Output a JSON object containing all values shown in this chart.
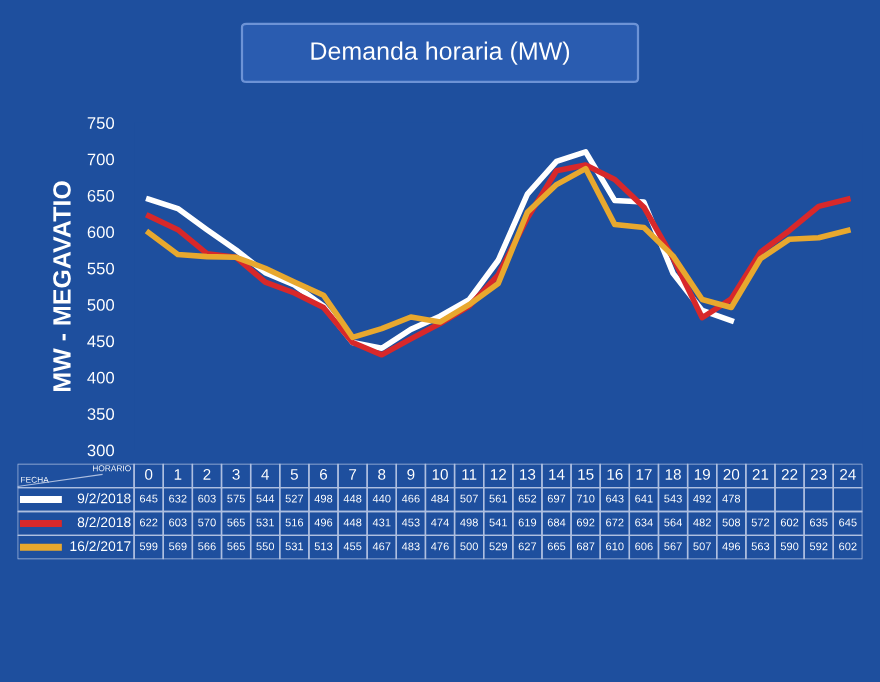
{
  "chart_data": {
    "type": "line",
    "title": "Demanda horaria (MW)",
    "ylabel": "MW - MEGAVATIO",
    "categories": [
      "0",
      "1",
      "2",
      "3",
      "4",
      "5",
      "6",
      "7",
      "8",
      "9",
      "10",
      "11",
      "12",
      "13",
      "14",
      "15",
      "16",
      "17",
      "18",
      "19",
      "20",
      "21",
      "22",
      "23",
      "24"
    ],
    "series": [
      {
        "name": "9/2/2018",
        "color": "#ffffff",
        "values": [
          645,
          632,
          603,
          575,
          544,
          527,
          498,
          448,
          440,
          466,
          484,
          507,
          561,
          652,
          697,
          710,
          643,
          641,
          543,
          492,
          478,
          null,
          null,
          null,
          null
        ]
      },
      {
        "name": "8/2/2018",
        "color": "#d8282a",
        "values": [
          622,
          603,
          570,
          565,
          531,
          516,
          496,
          448,
          431,
          453,
          474,
          498,
          541,
          619,
          684,
          692,
          672,
          634,
          564,
          482,
          508,
          572,
          602,
          635,
          645
        ]
      },
      {
        "name": "16/2/2017",
        "color": "#e8a82e",
        "values": [
          599,
          569,
          566,
          565,
          550,
          531,
          513,
          455,
          467,
          483,
          476,
          500,
          529,
          627,
          665,
          687,
          610,
          606,
          567,
          507,
          496,
          563,
          590,
          592,
          602
        ]
      }
    ],
    "ylim": [
      300,
      750
    ],
    "yticks": [
      300,
      350,
      400,
      450,
      500,
      550,
      600,
      650,
      700,
      750
    ],
    "tick_labels": "y",
    "grid": false,
    "legend": "bottom",
    "data_labels": true,
    "line_style": "solid",
    "marker": "none",
    "annotations": [
      "FECHA",
      "HORARIO"
    ]
  }
}
